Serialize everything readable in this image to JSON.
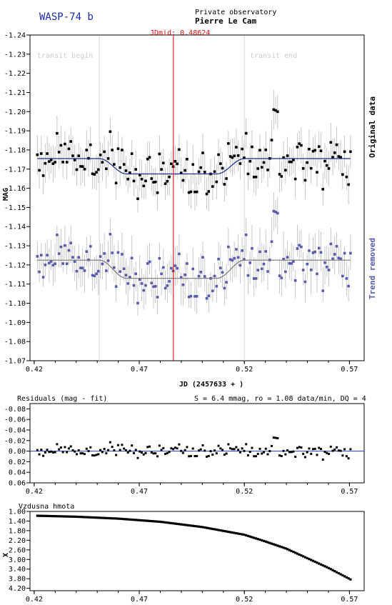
{
  "header": {
    "target": "WASP-74 b",
    "observatory_label": "Private observatory",
    "observer": "Pierre Le Cam",
    "jdmid_label": "JDmid: 0.48624"
  },
  "chart_data": [
    {
      "id": "light-curve",
      "type": "scatter",
      "title": "",
      "xlabel": "JD (2457633 + )",
      "ylabel": "MAG",
      "xlim": [
        0.418,
        0.577
      ],
      "ylim": [
        -1.24,
        -1.07
      ],
      "y_inverted": true,
      "x_ticks": [
        "0.42",
        "0.47",
        "0.52",
        "0.57"
      ],
      "y_ticks": [
        "-1.24",
        "-1.23",
        "-1.22",
        "-1.21",
        "-1.20",
        "-1.19",
        "-1.18",
        "-1.17",
        "-1.16",
        "-1.15",
        "-1.14",
        "-1.13",
        "-1.12",
        "-1.11",
        "-1.10",
        "-1.09",
        "-1.08",
        "-1.07"
      ],
      "annotations": {
        "jdmid": 0.48624,
        "transit_begin": 0.451,
        "transit_end": 0.52,
        "transit_begin_label": "transit begin",
        "transit_end_label": "transit end"
      },
      "series": [
        {
          "name": "Original data",
          "color": "#000000",
          "errbar_color": "#bbbbbb",
          "baseline": -1.1755,
          "depth": 0.008,
          "offset": 0,
          "noise": 0.0064
        },
        {
          "name": "Trend removed",
          "color": "#5a5aaa",
          "errbar_color": "#bbbbbb",
          "baseline": -1.1225,
          "depth": 0.0095,
          "offset": 0.053,
          "noise": 0.0064
        }
      ],
      "fit_colors": [
        "#1c2a8c",
        "#777777"
      ],
      "x_range_data": [
        0.4215,
        0.5705
      ],
      "n_points": 160,
      "grid": false,
      "legend": "right vertical labels"
    },
    {
      "id": "residuals",
      "type": "scatter",
      "title": "Residuals (mag - fit)",
      "stats": "S = 6.4 mmag, ro = 1.08 data/min, DQ = 4",
      "xlim": [
        0.418,
        0.577
      ],
      "ylim": [
        -0.09,
        0.06
      ],
      "y_inverted": true,
      "x_ticks": [
        "0.42",
        "0.47",
        "0.52",
        "0.57"
      ],
      "y_ticks": [
        "-0.08",
        "-0.06",
        "-0.04",
        "-0.02",
        "0.00",
        "0.02",
        "0.04",
        "0.06"
      ],
      "zero_line_color": "#1c3fb8",
      "rms": 0.0064
    },
    {
      "id": "airmass",
      "type": "line",
      "title": "Vzdusna hmota",
      "ylabel": "X",
      "xlim": [
        0.418,
        0.577
      ],
      "ylim": [
        1.0,
        4.3
      ],
      "y_inverted": true,
      "x_ticks": [
        "0.42",
        "0.47",
        "0.52",
        "0.57"
      ],
      "y_ticks": [
        "1.00",
        "1.40",
        "1.80",
        "2.20",
        "2.60",
        "3.00",
        "3.40",
        "3.80",
        "4.20"
      ],
      "x": [
        0.4215,
        0.44,
        0.46,
        0.48,
        0.5,
        0.52,
        0.53,
        0.54,
        0.55,
        0.56,
        0.5705
      ],
      "y": [
        1.18,
        1.22,
        1.3,
        1.43,
        1.65,
        1.97,
        2.25,
        2.55,
        2.95,
        3.35,
        3.83
      ]
    }
  ]
}
